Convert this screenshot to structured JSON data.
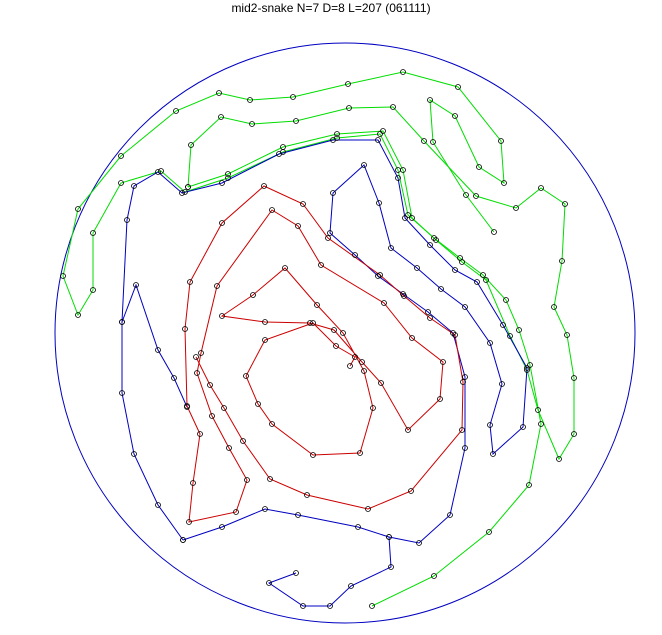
{
  "chart_data": {
    "type": "line",
    "title": "mid2-snake N=7 D=8 L=207 (061111)",
    "xlabel": "",
    "ylabel": "",
    "axes_visible": false,
    "grid": false,
    "boundary": {
      "shape": "circle",
      "center": [
        0,
        0
      ],
      "radius": 290,
      "color": "#0000c0"
    },
    "marker": "open-circle",
    "series": [
      {
        "color": "#00dd00",
        "points": [
          [
            27,
            -273
          ],
          [
            89,
            -243
          ],
          [
            144,
            -199
          ],
          [
            184,
            -152
          ],
          [
            196,
            -91
          ],
          [
            185,
            -32
          ],
          [
            174,
            3
          ],
          [
            161,
            33
          ],
          [
            138,
            58
          ],
          [
            115,
            75
          ],
          [
            89,
            95
          ],
          [
            63,
            118
          ],
          [
            53,
            163
          ],
          [
            35,
            199
          ],
          [
            -8,
            195
          ],
          [
            -62,
            181
          ],
          [
            -117,
            155
          ],
          [
            -160,
            141
          ],
          [
            -184,
            162
          ],
          [
            -224,
            150
          ],
          [
            -252,
            100
          ],
          [
            -252,
            43
          ],
          [
            -267,
            18
          ],
          [
            -282,
            57
          ],
          [
            -267,
            124
          ],
          [
            -224,
            177
          ],
          [
            -169,
            222
          ],
          [
            -126,
            240
          ],
          [
            -95,
            233
          ],
          [
            -52,
            236
          ],
          [
            3,
            249
          ],
          [
            58,
            261
          ],
          [
            113,
            246
          ],
          [
            156,
            192
          ],
          [
            159,
            150
          ],
          [
            134,
            166
          ],
          [
            110,
            217
          ],
          [
            85,
            233
          ],
          [
            88,
            191
          ],
          [
            121,
            138
          ],
          [
            149,
            101
          ]
        ]
      },
      {
        "color": "#00dd00",
        "points": [
          [
            -157,
            146
          ],
          [
            -154,
            188
          ],
          [
            -124,
            216
          ],
          [
            -93,
            209
          ],
          [
            -49,
            212
          ],
          [
            4,
            225
          ],
          [
            48,
            226
          ],
          [
            79,
            192
          ],
          [
            131,
            137
          ],
          [
            171,
            125
          ],
          [
            196,
            145
          ],
          [
            220,
            129
          ],
          [
            217,
            72
          ],
          [
            209,
            26
          ],
          [
            222,
            -2
          ],
          [
            229,
            -45
          ],
          [
            229,
            -101
          ],
          [
            214,
            -126
          ],
          [
            193,
            -77
          ],
          [
            182,
            -37
          ],
          [
            165,
            -3
          ],
          [
            141,
            53
          ],
          [
            117,
            71
          ],
          [
            91,
            93
          ],
          [
            67,
            115
          ],
          [
            58,
            163
          ],
          [
            38,
            202
          ],
          [
            -8,
            199
          ],
          [
            -62,
            186
          ],
          [
            -117,
            159
          ],
          [
            -157,
            146
          ]
        ]
      },
      {
        "color": "#0000c0",
        "points": [
          [
            -162,
            -207
          ],
          [
            -187,
            -172
          ],
          [
            -211,
            -121
          ],
          [
            -223,
            -60
          ],
          [
            -223,
            11
          ],
          [
            -218,
            113
          ],
          [
            -211,
            147
          ],
          [
            -187,
            161
          ],
          [
            -163,
            140
          ],
          [
            -123,
            150
          ],
          [
            -66,
            179
          ],
          [
            -12,
            193
          ],
          [
            33,
            193
          ],
          [
            53,
            155
          ],
          [
            60,
            115
          ],
          [
            85,
            88
          ],
          [
            110,
            63
          ],
          [
            132,
            51
          ],
          [
            158,
            8
          ],
          [
            182,
            -35
          ],
          [
            178,
            -94
          ],
          [
            148,
            -121
          ],
          [
            145,
            -92
          ],
          [
            157,
            -51
          ],
          [
            145,
            -10
          ],
          [
            120,
            26
          ],
          [
            96,
            44
          ],
          [
            72,
            65
          ],
          [
            46,
            85
          ],
          [
            34,
            130
          ],
          [
            19,
            168
          ],
          [
            -12,
            140
          ],
          [
            -15,
            100
          ],
          [
            10,
            78
          ],
          [
            33,
            57
          ],
          [
            58,
            39
          ],
          [
            83,
            21
          ],
          [
            108,
            0
          ],
          [
            120,
            -44
          ],
          [
            120,
            -115
          ],
          [
            105,
            -182
          ],
          [
            74,
            -210
          ],
          [
            44,
            -204
          ],
          [
            13,
            -194
          ],
          [
            -47,
            -182
          ],
          [
            -80,
            -176
          ],
          [
            -123,
            -194
          ],
          [
            -162,
            -207
          ]
        ]
      },
      {
        "color": "#0000c0",
        "points": [
          [
            44,
            -204
          ],
          [
            46,
            -234
          ],
          [
            6,
            -253
          ],
          [
            -15,
            -273
          ],
          [
            -42,
            -273
          ],
          [
            -76,
            -250
          ],
          [
            -49,
            -240
          ]
        ]
      },
      {
        "color": "#0000c0",
        "points": [
          [
            -223,
            11
          ],
          [
            -209,
            48
          ],
          [
            -187,
            -17
          ],
          [
            -171,
            -45
          ],
          [
            -158,
            -74
          ]
        ]
      },
      {
        "color": "#cc0000",
        "points": [
          [
            5,
            -33
          ],
          [
            10,
            -24
          ],
          [
            -9,
            -13
          ],
          [
            -32,
            10
          ],
          [
            -80,
            -7
          ],
          [
            -99,
            -43
          ],
          [
            -87,
            -71
          ],
          [
            -73,
            -91
          ],
          [
            -32,
            -122
          ],
          [
            15,
            -120
          ],
          [
            28,
            -75
          ],
          [
            19,
            -38
          ],
          [
            -2,
            0
          ],
          [
            -28,
            28
          ],
          [
            -60,
            65
          ],
          [
            -92,
            38
          ],
          [
            -123,
            17
          ],
          [
            -80,
            11
          ],
          [
            -35,
            10
          ],
          [
            -11,
            3
          ],
          [
            17,
            -29
          ],
          [
            36,
            -50
          ],
          [
            63,
            -97
          ],
          [
            95,
            -66
          ],
          [
            98,
            -29
          ],
          [
            67,
            -5
          ],
          [
            39,
            30
          ],
          [
            -24,
            68
          ],
          [
            -47,
            107
          ],
          [
            -73,
            123
          ],
          [
            -128,
            47
          ],
          [
            -144,
            -20
          ],
          [
            -148,
            -40
          ],
          [
            -133,
            -83
          ],
          [
            -116,
            -115
          ],
          [
            -98,
            -147
          ],
          [
            -109,
            -179
          ],
          [
            -156,
            -189
          ],
          [
            -152,
            -150
          ],
          [
            -145,
            -101
          ],
          [
            -158,
            -73
          ],
          [
            -160,
            4
          ],
          [
            -155,
            51
          ],
          [
            -123,
            110
          ],
          [
            -81,
            147
          ],
          [
            -42,
            129
          ],
          [
            -17,
            95
          ],
          [
            35,
            58
          ],
          [
            59,
            37
          ],
          [
            85,
            15
          ],
          [
            110,
            -2
          ],
          [
            118,
            -49
          ],
          [
            117,
            -97
          ],
          [
            66,
            -158
          ],
          [
            23,
            -176
          ],
          [
            -38,
            -162
          ],
          [
            -75,
            -146
          ],
          [
            -102,
            -108
          ],
          [
            -121,
            -75
          ],
          [
            -135,
            -52
          ],
          [
            -149,
            -24
          ]
        ]
      }
    ]
  }
}
